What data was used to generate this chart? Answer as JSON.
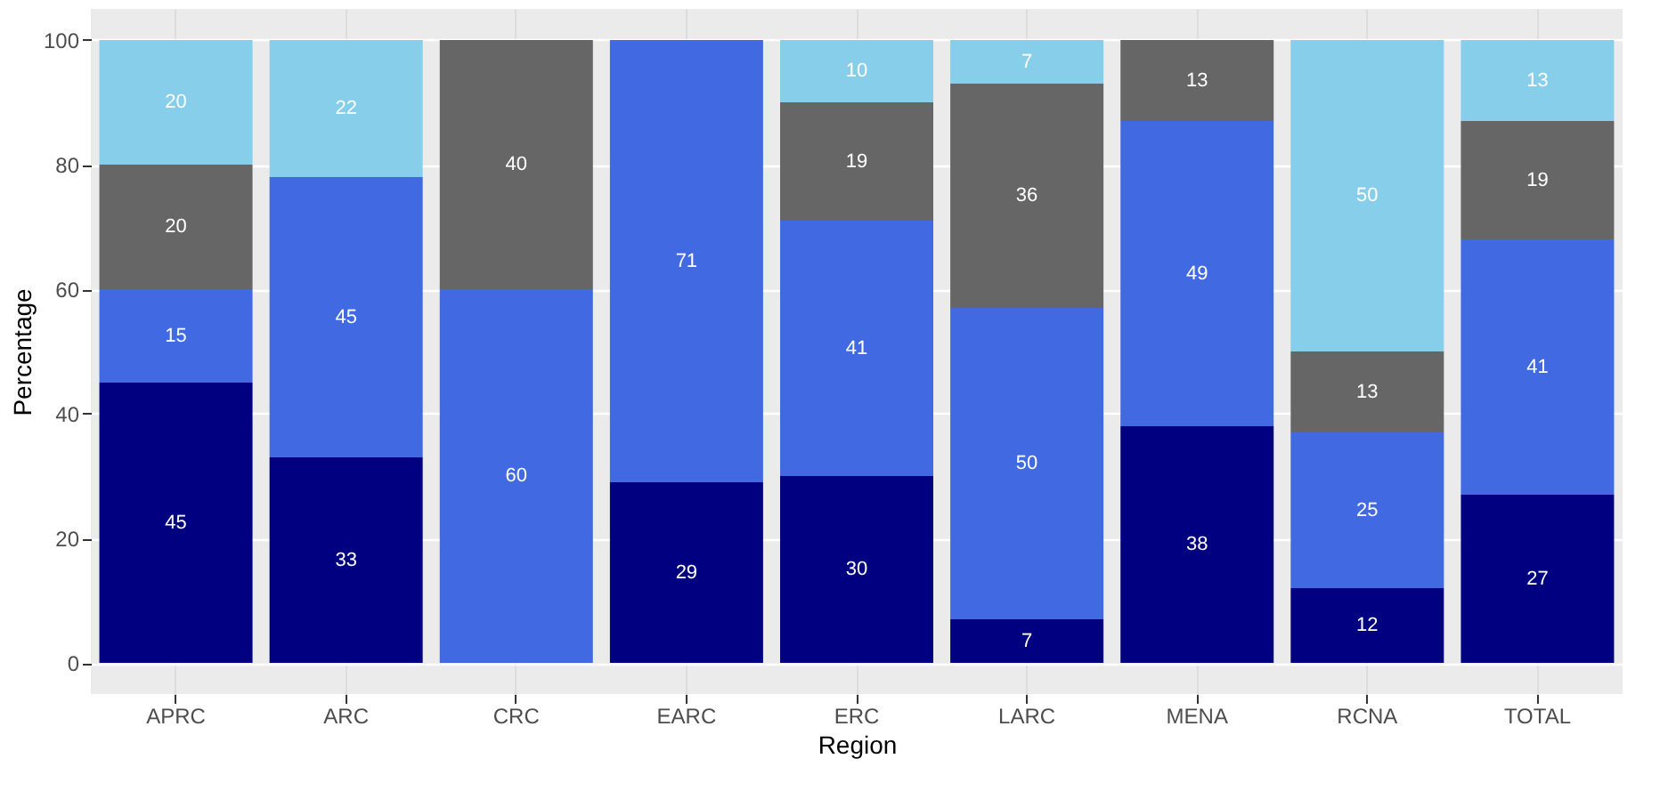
{
  "chart_data": {
    "type": "bar",
    "stacked": true,
    "xlabel": "Region",
    "ylabel": "Percentage",
    "categories": [
      "APRC",
      "ARC",
      "CRC",
      "EARC",
      "ERC",
      "LARC",
      "MENA",
      "RCNA",
      "TOTAL"
    ],
    "series": [
      {
        "color": "#000080",
        "values": [
          45,
          33,
          null,
          29,
          30,
          7,
          38,
          12,
          27
        ]
      },
      {
        "color": "#4169e1",
        "values": [
          15,
          45,
          60,
          71,
          41,
          50,
          49,
          25,
          41
        ]
      },
      {
        "color": "#666666",
        "values": [
          20,
          null,
          40,
          null,
          19,
          36,
          13,
          13,
          19
        ]
      },
      {
        "color": "#87ceeb",
        "values": [
          20,
          22,
          null,
          null,
          10,
          7,
          null,
          50,
          13
        ]
      }
    ],
    "ylim": [
      -5,
      105
    ],
    "yticks": [
      0,
      20,
      40,
      60,
      80,
      100
    ],
    "grid": true,
    "data_labels": true,
    "legend": false
  }
}
